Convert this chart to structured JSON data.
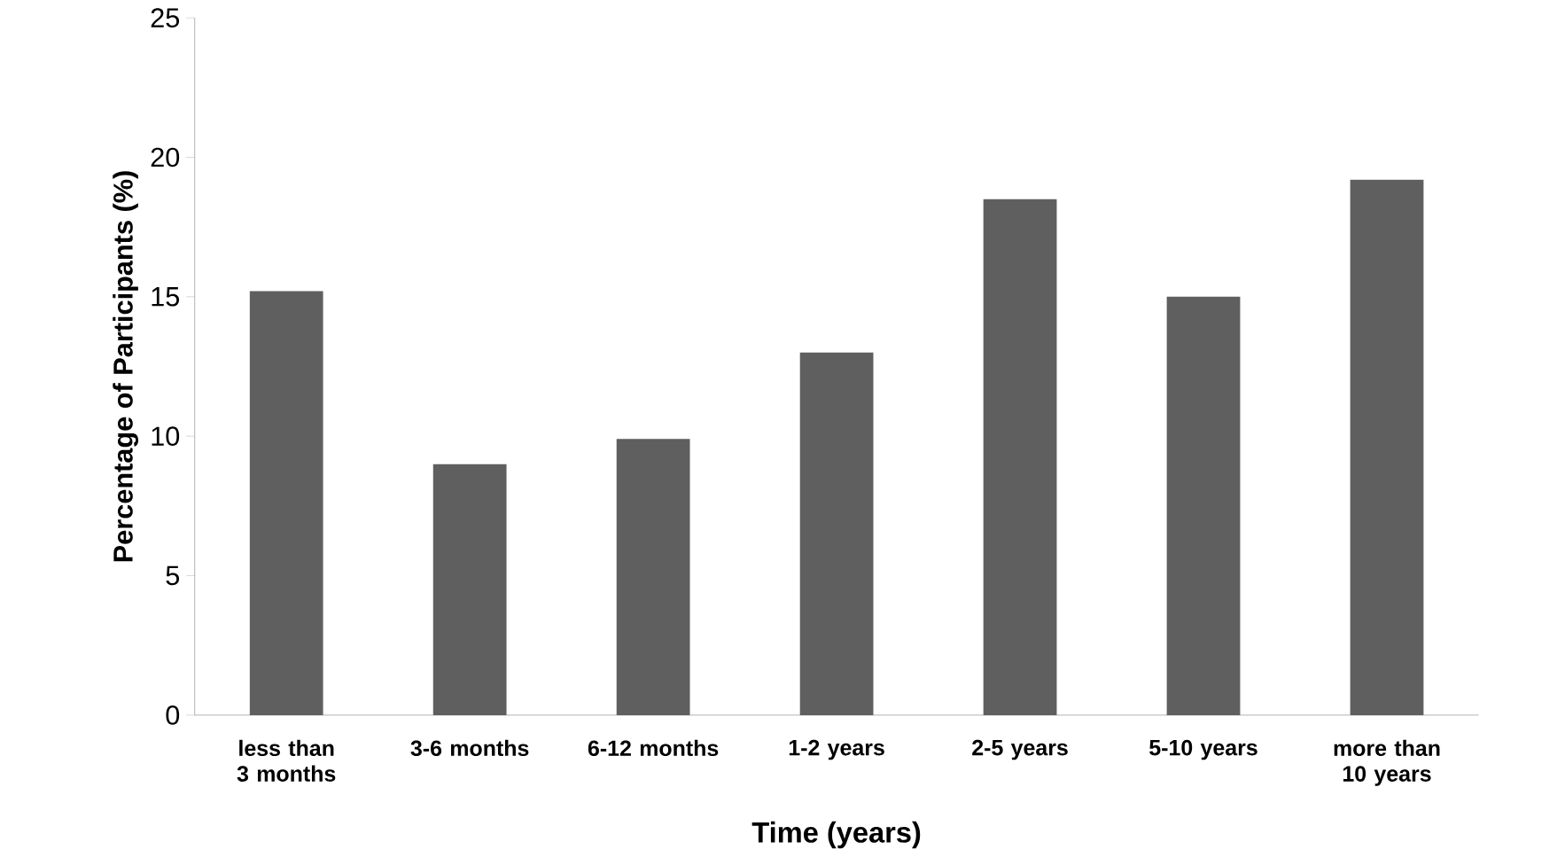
{
  "chart_data": {
    "type": "bar",
    "xlabel": "Time (years)",
    "ylabel": "Percentage of Participants (%)",
    "categories": [
      "less than 3 months",
      "3-6 months",
      "6-12 months",
      "1-2 years",
      "2-5 years",
      "5-10 years",
      "more than 10 years"
    ],
    "values": [
      15.2,
      9.0,
      9.9,
      13.0,
      18.5,
      15.0,
      19.2
    ],
    "color": "#5f5f5f",
    "ylim": [
      0,
      25
    ],
    "yticks": [
      0,
      5,
      10,
      15,
      20,
      25
    ],
    "grid": false
  }
}
